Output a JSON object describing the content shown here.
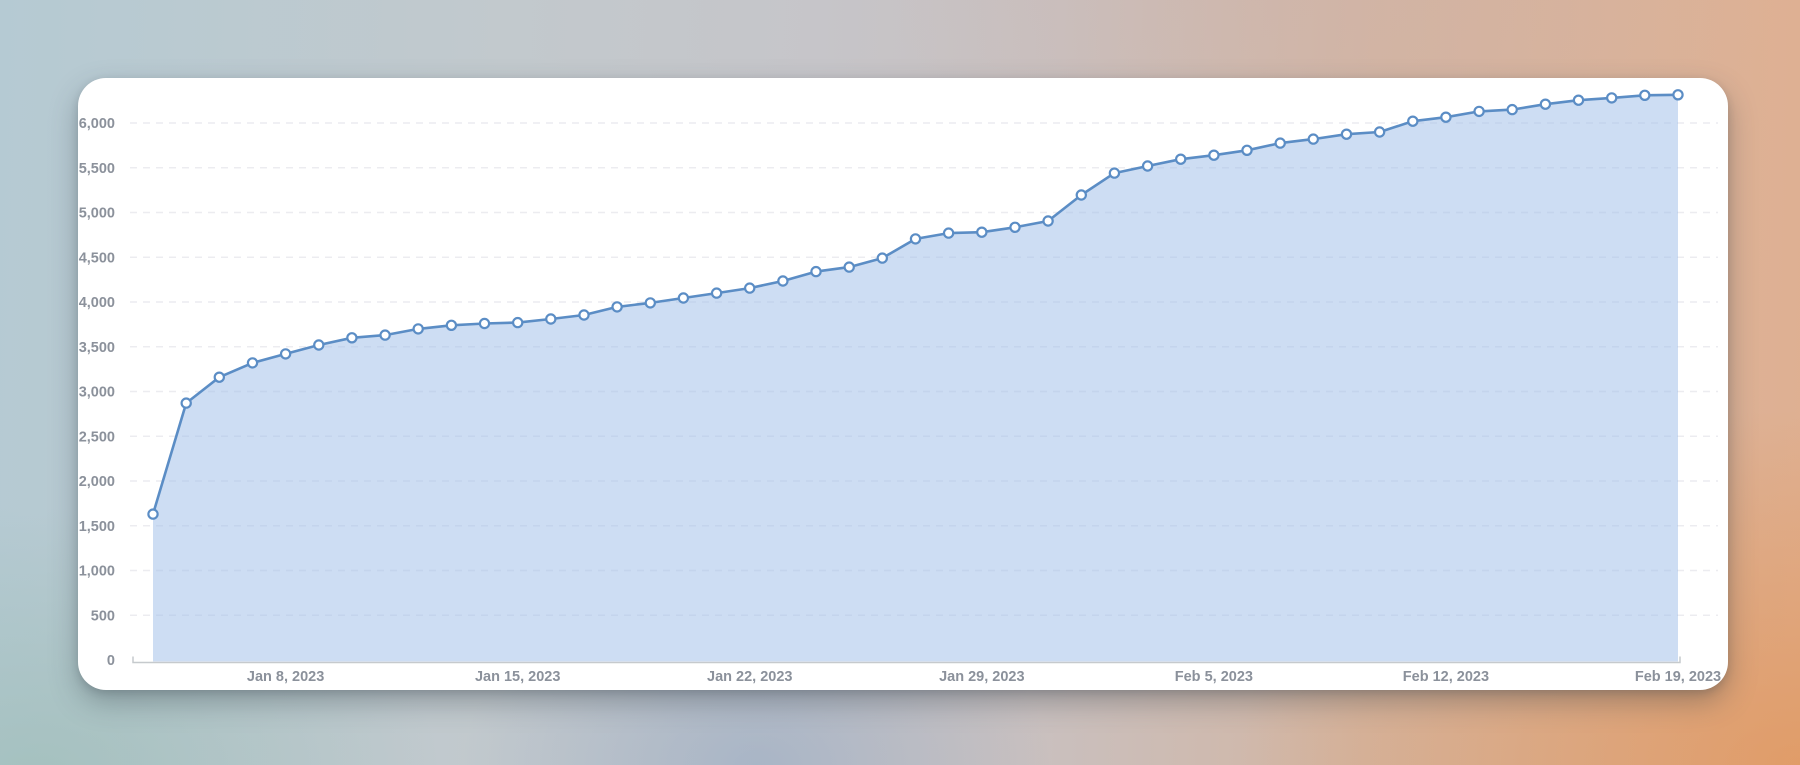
{
  "card": {
    "name": "cumulative-metric-chart-card"
  },
  "chart_data": {
    "type": "area",
    "title": "",
    "xlabel": "",
    "ylabel": "",
    "legend": "none",
    "grid": "horizontal-dashed",
    "ylim": [
      0,
      6500
    ],
    "y_ticks": [
      0,
      500,
      1000,
      1500,
      2000,
      2500,
      3000,
      3500,
      4000,
      4500,
      5000,
      5500,
      6000
    ],
    "y_tick_labels": [
      "0",
      "500",
      "1,000",
      "1,500",
      "2,000",
      "2,500",
      "3,000",
      "3,500",
      "4,000",
      "4,500",
      "5,000",
      "5,500",
      "6,000"
    ],
    "x_tick_labels": [
      "Jan 8, 2023",
      "Jan 15, 2023",
      "Jan 22, 2023",
      "Jan 29, 2023",
      "Feb 5, 2023",
      "Feb 12, 2023",
      "Feb 19, 2023"
    ],
    "x_tick_indices": [
      4,
      11,
      18,
      25,
      32,
      39,
      46
    ],
    "x": [
      "Jan 4, 2023",
      "Jan 5, 2023",
      "Jan 6, 2023",
      "Jan 7, 2023",
      "Jan 8, 2023",
      "Jan 9, 2023",
      "Jan 10, 2023",
      "Jan 11, 2023",
      "Jan 12, 2023",
      "Jan 13, 2023",
      "Jan 14, 2023",
      "Jan 15, 2023",
      "Jan 16, 2023",
      "Jan 17, 2023",
      "Jan 18, 2023",
      "Jan 19, 2023",
      "Jan 20, 2023",
      "Jan 21, 2023",
      "Jan 22, 2023",
      "Jan 23, 2023",
      "Jan 24, 2023",
      "Jan 25, 2023",
      "Jan 26, 2023",
      "Jan 27, 2023",
      "Jan 28, 2023",
      "Jan 29, 2023",
      "Jan 30, 2023",
      "Jan 31, 2023",
      "Feb 1, 2023",
      "Feb 2, 2023",
      "Feb 3, 2023",
      "Feb 4, 2023",
      "Feb 5, 2023",
      "Feb 6, 2023",
      "Feb 7, 2023",
      "Feb 8, 2023",
      "Feb 9, 2023",
      "Feb 10, 2023",
      "Feb 11, 2023",
      "Feb 12, 2023",
      "Feb 13, 2023",
      "Feb 14, 2023",
      "Feb 15, 2023",
      "Feb 16, 2023",
      "Feb 17, 2023",
      "Feb 18, 2023",
      "Feb 19, 2023"
    ],
    "values": [
      1630,
      2870,
      3160,
      3320,
      3420,
      3520,
      3600,
      3630,
      3700,
      3740,
      3760,
      3770,
      3810,
      3855,
      3945,
      3990,
      4045,
      4100,
      4155,
      4235,
      4340,
      4390,
      4490,
      4705,
      4770,
      4780,
      4835,
      4905,
      5195,
      5440,
      5520,
      5595,
      5640,
      5695,
      5775,
      5820,
      5875,
      5900,
      6020,
      6065,
      6130,
      6150,
      6210,
      6255,
      6280,
      6310,
      6315
    ],
    "colors": {
      "line": "#5b8dc5",
      "marker_fill": "#ffffff",
      "area_fill_rgba": "rgba(155,187,231,0.5)",
      "gridline": "#ececf0",
      "axis_line": "#c6cacd",
      "tick_label": "#8b919b",
      "card_background": "#ffffff"
    },
    "marker": "circle-open"
  }
}
